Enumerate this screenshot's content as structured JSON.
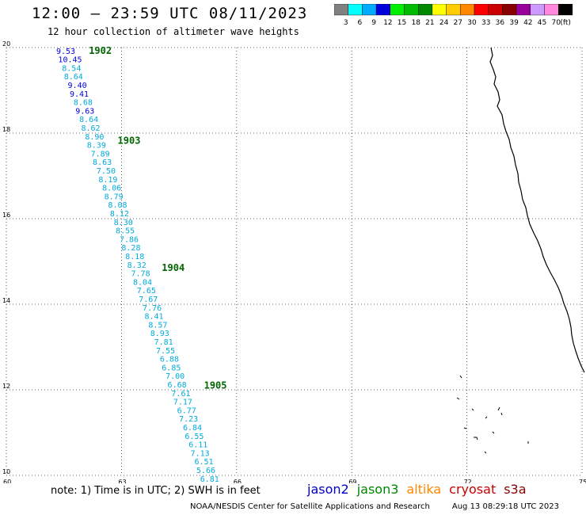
{
  "header": {
    "title": "12:00 — 23:59 UTC 08/11/2023",
    "subtitle": "12 hour collection of altimeter wave heights"
  },
  "legend": {
    "unit": "(ft)",
    "bins": [
      {
        "label": "3",
        "color": "#808080"
      },
      {
        "label": "6",
        "color": "#00ffff"
      },
      {
        "label": "9",
        "color": "#00aaff"
      },
      {
        "label": "12",
        "color": "#0000dd"
      },
      {
        "label": "15",
        "color": "#00ee00"
      },
      {
        "label": "18",
        "color": "#00bb00"
      },
      {
        "label": "21",
        "color": "#008800"
      },
      {
        "label": "24",
        "color": "#ffff00"
      },
      {
        "label": "27",
        "color": "#ffcc00"
      },
      {
        "label": "30",
        "color": "#ff8800"
      },
      {
        "label": "33",
        "color": "#ff0000"
      },
      {
        "label": "36",
        "color": "#cc0000"
      },
      {
        "label": "39",
        "color": "#880000"
      },
      {
        "label": "42",
        "color": "#990099"
      },
      {
        "label": "45",
        "color": "#cc99ff"
      },
      {
        "label": "70",
        "color": "#ff88dd"
      },
      {
        "label": "",
        "color": "#000000"
      }
    ]
  },
  "map": {
    "lon_range": [
      60,
      75
    ],
    "lat_range": [
      10,
      20
    ],
    "lon_ticks": [
      "60",
      "63",
      "66",
      "69",
      "72",
      "75"
    ],
    "lat_ticks": [
      "20",
      "18",
      "16",
      "14",
      "12",
      "10"
    ]
  },
  "track": {
    "satellite": "jason3",
    "color_default": "#00aadd",
    "color_high": "#0000dd",
    "time_labels": [
      {
        "text": "1902",
        "lat": 19.93,
        "lon": 62.15
      },
      {
        "text": "1903",
        "lat": 17.82,
        "lon": 62.9
      },
      {
        "text": "1904",
        "lat": 14.85,
        "lon": 64.05
      },
      {
        "text": "1905",
        "lat": 12.1,
        "lon": 65.15
      }
    ],
    "points": [
      {
        "v": "9.53",
        "lat": 19.93,
        "lon": 61.3
      },
      {
        "v": "10.45",
        "lat": 19.73,
        "lon": 61.35
      },
      {
        "v": "8.54",
        "lat": 19.53,
        "lon": 61.45
      },
      {
        "v": "8.64",
        "lat": 19.33,
        "lon": 61.5
      },
      {
        "v": "9.40",
        "lat": 19.13,
        "lon": 61.6
      },
      {
        "v": "9.41",
        "lat": 18.93,
        "lon": 61.65
      },
      {
        "v": "8.68",
        "lat": 18.73,
        "lon": 61.75
      },
      {
        "v": "9.63",
        "lat": 18.53,
        "lon": 61.8
      },
      {
        "v": "8.64",
        "lat": 18.33,
        "lon": 61.9
      },
      {
        "v": "8.62",
        "lat": 18.13,
        "lon": 61.95
      },
      {
        "v": "8.90",
        "lat": 17.93,
        "lon": 62.05
      },
      {
        "v": "8.39",
        "lat": 17.73,
        "lon": 62.1
      },
      {
        "v": "7.89",
        "lat": 17.53,
        "lon": 62.2
      },
      {
        "v": "8.63",
        "lat": 17.33,
        "lon": 62.25
      },
      {
        "v": "7.50",
        "lat": 17.13,
        "lon": 62.35
      },
      {
        "v": "8.19",
        "lat": 16.93,
        "lon": 62.4
      },
      {
        "v": "8.06",
        "lat": 16.73,
        "lon": 62.5
      },
      {
        "v": "8.79",
        "lat": 16.53,
        "lon": 62.55
      },
      {
        "v": "8.08",
        "lat": 16.33,
        "lon": 62.65
      },
      {
        "v": "8.12",
        "lat": 16.13,
        "lon": 62.7
      },
      {
        "v": "8.30",
        "lat": 15.93,
        "lon": 62.8
      },
      {
        "v": "8.55",
        "lat": 15.73,
        "lon": 62.85
      },
      {
        "v": "7.86",
        "lat": 15.53,
        "lon": 62.95
      },
      {
        "v": "8.28",
        "lat": 15.33,
        "lon": 63.0
      },
      {
        "v": "8.18",
        "lat": 15.13,
        "lon": 63.1
      },
      {
        "v": "8.32",
        "lat": 14.93,
        "lon": 63.15
      },
      {
        "v": "7.78",
        "lat": 14.73,
        "lon": 63.25
      },
      {
        "v": "8.04",
        "lat": 14.53,
        "lon": 63.3
      },
      {
        "v": "7.65",
        "lat": 14.33,
        "lon": 63.4
      },
      {
        "v": "7.67",
        "lat": 14.13,
        "lon": 63.45
      },
      {
        "v": "7.76",
        "lat": 13.93,
        "lon": 63.55
      },
      {
        "v": "8.41",
        "lat": 13.73,
        "lon": 63.6
      },
      {
        "v": "8.57",
        "lat": 13.53,
        "lon": 63.7
      },
      {
        "v": "8.93",
        "lat": 13.33,
        "lon": 63.75
      },
      {
        "v": "7.81",
        "lat": 13.13,
        "lon": 63.85
      },
      {
        "v": "7.55",
        "lat": 12.93,
        "lon": 63.9
      },
      {
        "v": "6.88",
        "lat": 12.73,
        "lon": 64.0
      },
      {
        "v": "6.85",
        "lat": 12.53,
        "lon": 64.05
      },
      {
        "v": "7.00",
        "lat": 12.33,
        "lon": 64.15
      },
      {
        "v": "6.68",
        "lat": 12.13,
        "lon": 64.2
      },
      {
        "v": "7.61",
        "lat": 11.93,
        "lon": 64.3
      },
      {
        "v": "7.17",
        "lat": 11.73,
        "lon": 64.35
      },
      {
        "v": "6.77",
        "lat": 11.53,
        "lon": 64.45
      },
      {
        "v": "7.23",
        "lat": 11.33,
        "lon": 64.5
      },
      {
        "v": "6.84",
        "lat": 11.13,
        "lon": 64.6
      },
      {
        "v": "6.55",
        "lat": 10.93,
        "lon": 64.65
      },
      {
        "v": "6.11",
        "lat": 10.73,
        "lon": 64.75
      },
      {
        "v": "7.13",
        "lat": 10.53,
        "lon": 64.8
      },
      {
        "v": "6.51",
        "lat": 10.33,
        "lon": 64.9
      },
      {
        "v": "5.66",
        "lat": 10.13,
        "lon": 64.95
      },
      {
        "v": "6.81",
        "lat": 9.93,
        "lon": 65.05
      }
    ]
  },
  "footer": {
    "note": "note: 1) Time is in UTC; 2) SWH is in feet",
    "satellites": [
      {
        "name": "jason2",
        "color": "#0000cc"
      },
      {
        "name": "jason3",
        "color": "#008800"
      },
      {
        "name": "altika",
        "color": "#ff8800"
      },
      {
        "name": "cryosat",
        "color": "#cc0000"
      },
      {
        "name": "s3a",
        "color": "#880000"
      }
    ],
    "credit_left": "NOAA/NESDIS Center for Satellite Applications and Research",
    "credit_right": "Aug 13 08:29:18 UTC 2023"
  }
}
